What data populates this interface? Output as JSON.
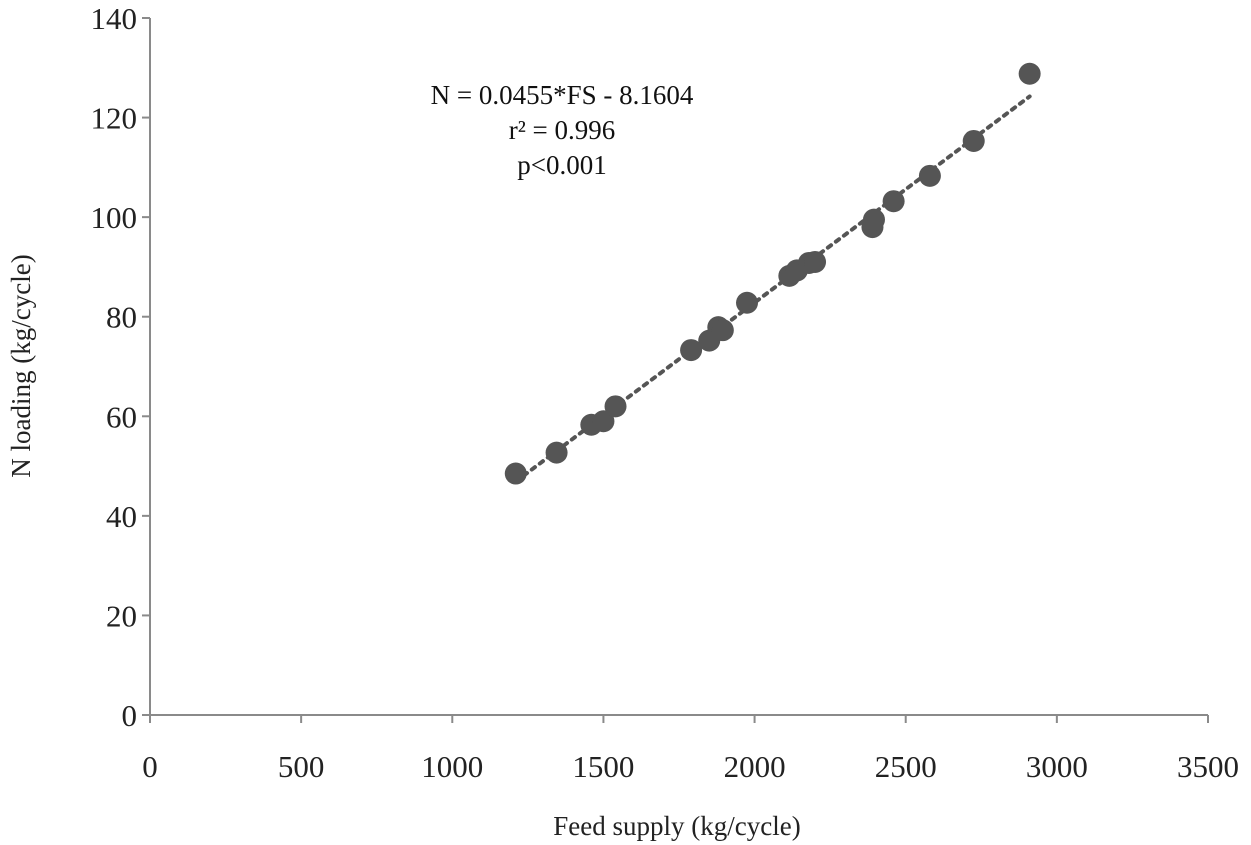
{
  "chart_data": {
    "type": "scatter",
    "title": "",
    "xlabel": "Feed supply (kg/cycle)",
    "ylabel": "N loading (kg/cycle)",
    "xlim": [
      0,
      3500
    ],
    "ylim": [
      0,
      140
    ],
    "xticks": [
      0,
      500,
      1000,
      1500,
      2000,
      2500,
      3000,
      3500
    ],
    "yticks": [
      0,
      20,
      40,
      60,
      80,
      100,
      120,
      140
    ],
    "grid": false,
    "legend": "none",
    "point_color": "#555555",
    "trendline_color": "#555555",
    "series": [
      {
        "points": [
          {
            "x": 1210,
            "y": 48.5
          },
          {
            "x": 1345,
            "y": 52.7
          },
          {
            "x": 1460,
            "y": 58.3
          },
          {
            "x": 1500,
            "y": 59.0
          },
          {
            "x": 1540,
            "y": 62.0
          },
          {
            "x": 1790,
            "y": 73.3
          },
          {
            "x": 1850,
            "y": 75.2
          },
          {
            "x": 1880,
            "y": 77.9
          },
          {
            "x": 1895,
            "y": 77.3
          },
          {
            "x": 1975,
            "y": 82.8
          },
          {
            "x": 2115,
            "y": 88.2
          },
          {
            "x": 2140,
            "y": 89.3
          },
          {
            "x": 2180,
            "y": 90.8
          },
          {
            "x": 2200,
            "y": 91.0
          },
          {
            "x": 2390,
            "y": 98.0
          },
          {
            "x": 2395,
            "y": 99.5
          },
          {
            "x": 2460,
            "y": 103.2
          },
          {
            "x": 2580,
            "y": 108.3
          },
          {
            "x": 2725,
            "y": 115.3
          },
          {
            "x": 2910,
            "y": 128.8
          }
        ]
      }
    ],
    "trendline": {
      "slope": 0.0455,
      "intercept": -8.1604,
      "x_range": [
        1210,
        2910
      ],
      "style": "dotted"
    },
    "annotations": [
      "N = 0.0455*FS - 8.1604",
      "r² = 0.996",
      "p<0.001"
    ]
  }
}
